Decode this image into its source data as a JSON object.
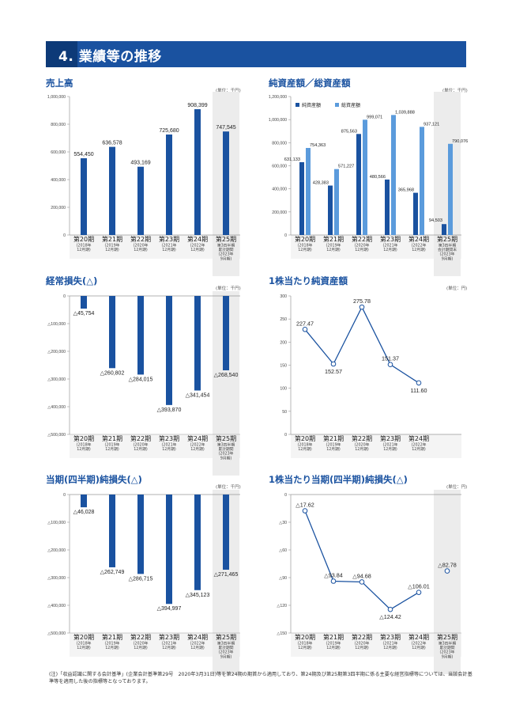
{
  "section": {
    "title": "4. 業績等の推移"
  },
  "colors": {
    "primary": "#1a52a0",
    "light": "#5b9bdc",
    "forecast_bg": "#ececec",
    "axis": "#999999"
  },
  "charts": [
    {
      "title": "売上高",
      "unit": "(単位：千円)"
    },
    {
      "title": "純資産額／総資産額",
      "unit": "(単位：千円)"
    },
    {
      "title": "経常損失(△)",
      "unit": "(単位：千円)"
    },
    {
      "title": "1株当たり純資産額",
      "unit": "(単位：円)"
    },
    {
      "title": "当期(四半期)純損失(△)",
      "unit": "(単位：千円)"
    },
    {
      "title": "1株当たり当期(四半期)純損失(△)",
      "unit": "(単位：円)"
    }
  ],
  "chart_data": [
    {
      "type": "bar",
      "categories": [
        "第20期",
        "第21期",
        "第22期",
        "第23期",
        "第24期",
        "第25期"
      ],
      "sub": [
        [
          "(2018年",
          "12月期)"
        ],
        [
          "(2019年",
          "12月期)"
        ],
        [
          "(2020年",
          "12月期)"
        ],
        [
          "(2021年",
          "12月期)"
        ],
        [
          "(2022年",
          "12月期)"
        ],
        [
          "第3四半期",
          "累計期間",
          "(2023年",
          "9月期)"
        ]
      ],
      "series": [
        {
          "values": [
            554450,
            636578,
            493169,
            725680,
            908399,
            747545
          ],
          "labels": [
            "554,450",
            "636,578",
            "493,169",
            "725,680",
            "908,399",
            "747,545"
          ]
        }
      ],
      "ylim": [
        0,
        1000000
      ],
      "yticks": [
        0,
        200000,
        400000,
        600000,
        800000,
        1000000
      ],
      "ytick_labels": [
        "0",
        "200,000",
        "400,000",
        "600,000",
        "800,000",
        "1,000,000"
      ],
      "highlight_last": true
    },
    {
      "type": "bar",
      "categories": [
        "第20期",
        "第21期",
        "第22期",
        "第23期",
        "第24期",
        "第25期"
      ],
      "sub": [
        [
          "(2018年",
          "12月期)"
        ],
        [
          "(2019年",
          "12月期)"
        ],
        [
          "(2020年",
          "12月期)"
        ],
        [
          "(2021年",
          "12月期)"
        ],
        [
          "(2022年",
          "12月期)"
        ],
        [
          "第3四半期",
          "会計期間末",
          "(2023年",
          "9月期)"
        ]
      ],
      "series": [
        {
          "name": "純資産額",
          "values": [
            631133,
            428383,
            875563,
            480566,
            365968,
            94503
          ],
          "labels": [
            "631,133",
            "428,383",
            "875,563",
            "480,566",
            "365,968",
            "94,503"
          ]
        },
        {
          "name": "総資産額",
          "values": [
            754363,
            571227,
            999071,
            1039888,
            937121,
            790076
          ],
          "labels": [
            "754,363",
            "571,227",
            "999,071",
            "1,039,888",
            "937,121",
            "790,076"
          ]
        }
      ],
      "ylim": [
        0,
        1200000
      ],
      "yticks": [
        0,
        200000,
        400000,
        600000,
        800000,
        1000000,
        1200000
      ],
      "ytick_labels": [
        "0",
        "200,000",
        "400,000",
        "600,000",
        "800,000",
        "1,000,000",
        "1,200,000"
      ],
      "legend": "top-left",
      "highlight_last": true
    },
    {
      "type": "bar",
      "categories": [
        "第20期",
        "第21期",
        "第22期",
        "第23期",
        "第24期",
        "第25期"
      ],
      "sub": [
        [
          "(2018年",
          "12月期)"
        ],
        [
          "(2019年",
          "12月期)"
        ],
        [
          "(2020年",
          "12月期)"
        ],
        [
          "(2021年",
          "12月期)"
        ],
        [
          "(2022年",
          "12月期)"
        ],
        [
          "第3四半期",
          "累計期間",
          "(2023年",
          "9月期)"
        ]
      ],
      "series": [
        {
          "values": [
            -45754,
            -260802,
            -284015,
            -393870,
            -341454,
            -268540
          ],
          "labels": [
            "△45,754",
            "△260,802",
            "△284,015",
            "△393,870",
            "△341,454",
            "△268,540"
          ]
        }
      ],
      "ylim": [
        -500000,
        0
      ],
      "yticks": [
        0,
        -100000,
        -200000,
        -300000,
        -400000,
        -500000
      ],
      "ytick_labels": [
        "0",
        "△100,000",
        "△200,000",
        "△300,000",
        "△400,000",
        "△500,000"
      ],
      "highlight_last": true
    },
    {
      "type": "line",
      "categories": [
        "第20期",
        "第21期",
        "第22期",
        "第23期",
        "第24期"
      ],
      "sub": [
        [
          "(2018年",
          "12月期)"
        ],
        [
          "(2019年",
          "12月期)"
        ],
        [
          "(2020年",
          "12月期)"
        ],
        [
          "(2021年",
          "12月期)"
        ],
        [
          "(2022年",
          "12月期)"
        ]
      ],
      "series": [
        {
          "values": [
            227.47,
            152.57,
            275.78,
            151.37,
            111.6
          ],
          "labels": [
            "227.47",
            "152.57",
            "275.78",
            "151.37",
            "111.60"
          ]
        }
      ],
      "ylim": [
        0,
        300
      ],
      "yticks": [
        0,
        50,
        100,
        150,
        200,
        250,
        300
      ],
      "ytick_labels": [
        "0",
        "50",
        "100",
        "150",
        "200",
        "250",
        "300"
      ],
      "highlight_last": false
    },
    {
      "type": "bar",
      "categories": [
        "第20期",
        "第21期",
        "第22期",
        "第23期",
        "第24期",
        "第25期"
      ],
      "sub": [
        [
          "(2018年",
          "12月期)"
        ],
        [
          "(2019年",
          "12月期)"
        ],
        [
          "(2020年",
          "12月期)"
        ],
        [
          "(2021年",
          "12月期)"
        ],
        [
          "(2022年",
          "12月期)"
        ],
        [
          "第3四半期",
          "累計期間",
          "(2023年",
          "9月期)"
        ]
      ],
      "series": [
        {
          "values": [
            -46028,
            -262749,
            -286715,
            -394997,
            -345123,
            -271465
          ],
          "labels": [
            "△46,028",
            "△262,749",
            "△286,715",
            "△394,997",
            "△345,123",
            "△271,465"
          ]
        }
      ],
      "ylim": [
        -500000,
        0
      ],
      "yticks": [
        0,
        -100000,
        -200000,
        -300000,
        -400000,
        -500000
      ],
      "ytick_labels": [
        "0",
        "△100,000",
        "△200,000",
        "△300,000",
        "△400,000",
        "△500,000"
      ],
      "highlight_last": true
    },
    {
      "type": "line",
      "categories": [
        "第20期",
        "第21期",
        "第22期",
        "第23期",
        "第24期",
        "第25期"
      ],
      "sub": [
        [
          "(2018年",
          "12月期)"
        ],
        [
          "(2019年",
          "12月期)"
        ],
        [
          "(2020年",
          "12月期)"
        ],
        [
          "(2021年",
          "12月期)"
        ],
        [
          "(2022年",
          "12月期)"
        ],
        [
          "第3四半期",
          "累計期間",
          "(2023年",
          "9月期)"
        ]
      ],
      "series": [
        {
          "values": [
            -17.62,
            -93.84,
            -94.68,
            -124.42,
            -106.01,
            -82.78
          ],
          "labels": [
            "△17.62",
            "△93.84",
            "△94.68",
            "△124.42",
            "△106.01",
            "△82.78"
          ]
        }
      ],
      "ylim": [
        -150,
        0
      ],
      "yticks": [
        0,
        -30,
        -60,
        -90,
        -120,
        -150
      ],
      "ytick_labels": [
        "0",
        "△30",
        "△60",
        "△90",
        "△120",
        "△150"
      ],
      "highlight_last": true,
      "last_point_disconnected": true
    }
  ],
  "footnote": "(注)「収益認識に関する会計基準」(企業会計基準第29号　2020年3月31日)等を第24期の期首から適用しており、第24期及び第25期第3四半期に係る主要な経営指標等については、当該会計基準等を適用した後の指標等となっております。"
}
